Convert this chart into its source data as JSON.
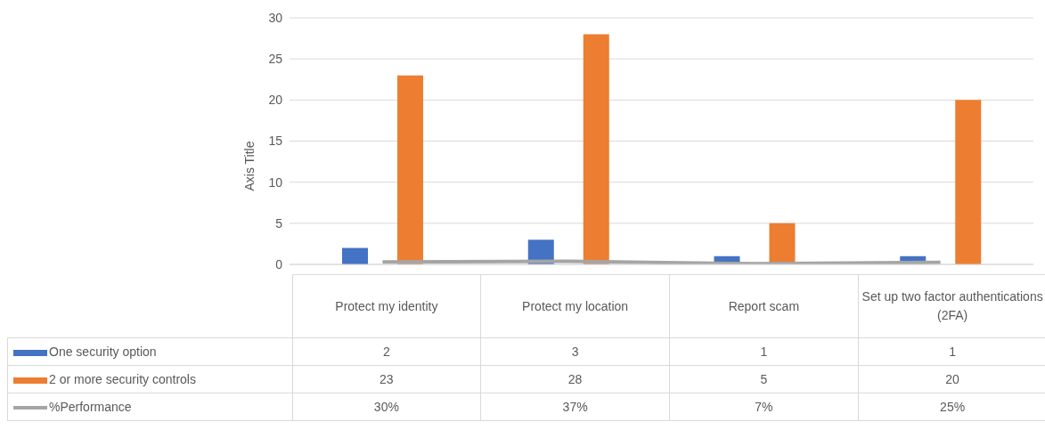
{
  "chart_data": {
    "type": "bar",
    "ylabel": "Axis Title",
    "categories": [
      "Protect my identity",
      "Protect my location",
      "Report scam",
      "Set up two factor authentications (2FA)"
    ],
    "series": [
      {
        "name": "One security option",
        "color": "#4472c4",
        "values": [
          2,
          3,
          1,
          1
        ]
      },
      {
        "name": "2 or more security controls",
        "color": "#ed7d31",
        "values": [
          23,
          28,
          5,
          20
        ]
      },
      {
        "name": "%Performance",
        "type": "line",
        "color": "#a5a5a5",
        "values": [
          0.3,
          0.37,
          0.07,
          0.25
        ],
        "value_labels": [
          "30%",
          "37%",
          "7%",
          "25%"
        ]
      }
    ],
    "ylim": [
      0,
      30
    ],
    "yticks": [
      0,
      5,
      10,
      15,
      20,
      25,
      30
    ],
    "grid": "y",
    "legend": "bottom left",
    "marker": "none",
    "data_labels": true
  }
}
